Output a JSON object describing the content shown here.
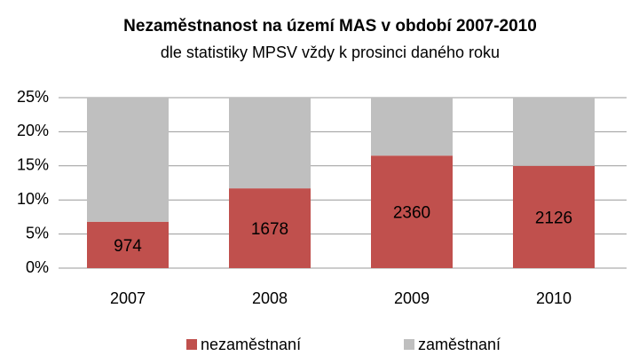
{
  "chart_data": {
    "type": "stacked_bar",
    "title": "Nezaměstnanost na území MAS v období 2007-2010",
    "subtitle": "dle statistiky MPSV vždy k prosinci daného roku",
    "categories": [
      "2007",
      "2008",
      "2009",
      "2010"
    ],
    "series": [
      {
        "name": "nezaměstnaní",
        "color": "#c0504d",
        "values": [
          6.8,
          11.7,
          16.5,
          15.0
        ],
        "data_labels": [
          974,
          1678,
          2360,
          2126
        ]
      },
      {
        "name": "zaměstnaní",
        "color": "#bfbfbf",
        "values": [
          18.2,
          13.3,
          8.5,
          10.0
        ]
      }
    ],
    "ylim": [
      0,
      25
    ],
    "yticks": [
      {
        "value": 0,
        "label": "0%"
      },
      {
        "value": 5,
        "label": "5%"
      },
      {
        "value": 10,
        "label": "10%"
      },
      {
        "value": 15,
        "label": "15%"
      },
      {
        "value": 20,
        "label": "20%"
      },
      {
        "value": 25,
        "label": "25%"
      }
    ],
    "grid": true,
    "legend": "bottom"
  }
}
